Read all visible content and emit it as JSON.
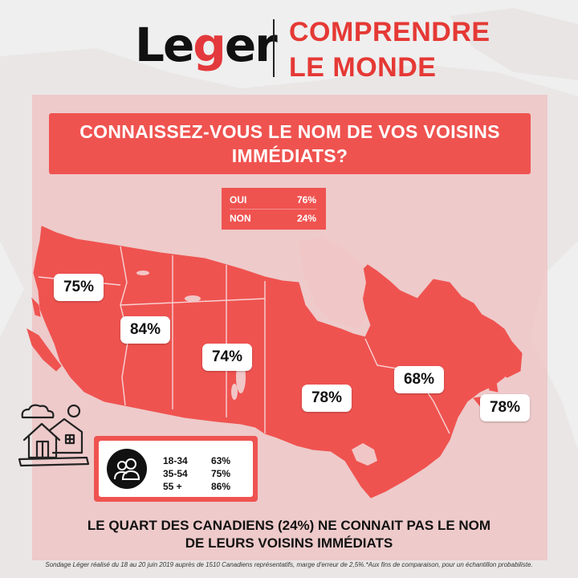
{
  "header": {
    "logo_prefix": "Le",
    "logo_g": "g",
    "logo_suffix": "er",
    "tagline_line1": "COMPRENDRE",
    "tagline_line2": "LE MONDE"
  },
  "question": "CONNAISSEZ-VOUS LE NOM DE VOS VOISINS IMMÉDIATS?",
  "answers": [
    {
      "label": "OUI",
      "value": "76%"
    },
    {
      "label": "NON",
      "value": "24%"
    }
  ],
  "regions": [
    {
      "name": "british-columbia",
      "value": "75%"
    },
    {
      "name": "alberta",
      "value": "84%"
    },
    {
      "name": "saskatchewan-manitoba",
      "value": "74%"
    },
    {
      "name": "ontario",
      "value": "78%"
    },
    {
      "name": "quebec",
      "value": "68%"
    },
    {
      "name": "atlantic",
      "value": "78%"
    }
  ],
  "age_groups": [
    {
      "group": "18-34",
      "value": "63%"
    },
    {
      "group": "35-54",
      "value": "75%"
    },
    {
      "group": "55 +",
      "value": "86%"
    }
  ],
  "conclusion_line1": "LE QUART DES CANADIENS (24%) NE CONNAIT PAS LE NOM",
  "conclusion_line2": "DE LEURS VOISINS IMMÉDIATS",
  "footnote": "Sondage Léger réalisé du 18 au 20 juin 2019 auprès de 1510 Canadiens représentatifs, marge d'erreur de 2,5%.*Aux fins de comparaison, pour un échantillon probabiliste.",
  "colors": {
    "accent": "#ef5350",
    "map_fill": "#ef5350",
    "panel": "#f1b8b8",
    "background": "#efefef"
  },
  "icons": [
    "house-icon",
    "people-icon",
    "sun-icon",
    "cloud-icon"
  ]
}
